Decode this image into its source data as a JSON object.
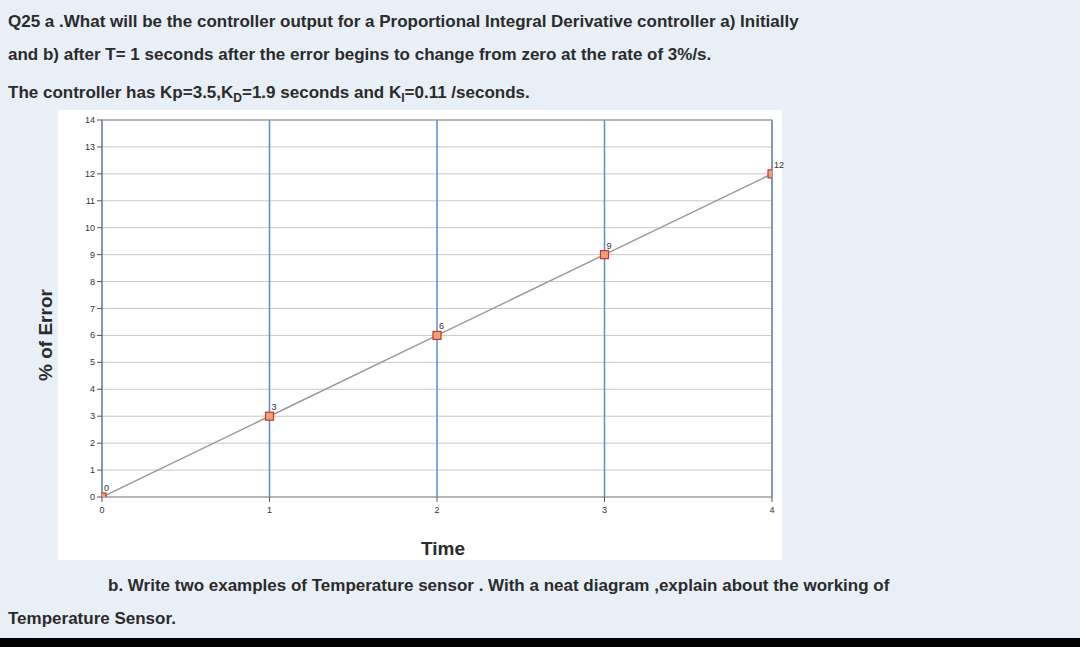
{
  "question": {
    "line1": "Q25 a .What will be the controller output for a Proportional Integral Derivative controller a) Initially",
    "line2": "and b) after T= 1 seconds after the error begins to change from zero at the rate of 3%/s.",
    "line3": [
      {
        "t": "The controller has Kp=3.5,K"
      },
      {
        "sub": "D"
      },
      {
        "t": "=1.9 seconds and K"
      },
      {
        "sub": "I"
      },
      {
        "t": "=0.11 /seconds."
      }
    ]
  },
  "chart_data": {
    "type": "line",
    "x_label": "Time",
    "y_label": "% of Error",
    "x": [
      0,
      1,
      2,
      3,
      4
    ],
    "values": [
      0,
      3,
      6,
      9,
      12
    ],
    "color": "#999999",
    "marker": "square",
    "data_labels": true,
    "grid": true,
    "xlim": [
      0,
      4
    ],
    "xticks": [
      0,
      1,
      2,
      3,
      4
    ],
    "ylim": [
      0,
      14
    ],
    "yticks": [
      0,
      1,
      2,
      3,
      4,
      5,
      6,
      7,
      8,
      9,
      10,
      11,
      12,
      13,
      14
    ]
  },
  "part_b": {
    "line1": "b. Write two examples of Temperature sensor . With a neat diagram ,explain about the working of",
    "line2": "Temperature Sensor."
  }
}
